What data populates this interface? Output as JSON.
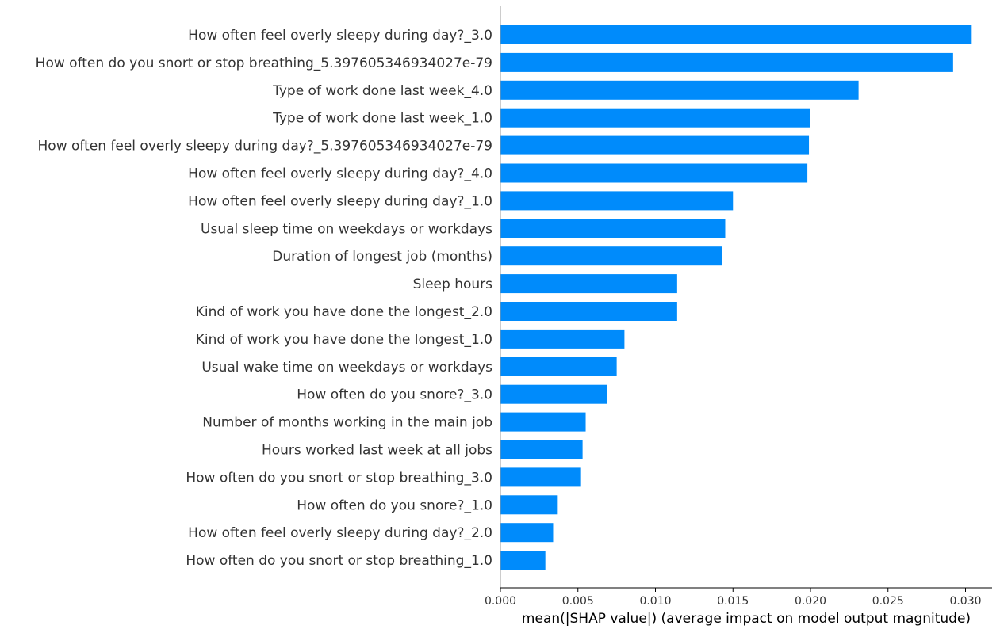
{
  "chart_data": {
    "type": "bar",
    "orientation": "horizontal",
    "categories": [
      "How often feel overly sleepy during day?_3.0",
      "How often do you snort or stop breathing_5.397605346934027e-79",
      "Type of work done last week_4.0",
      "Type of work done last week_1.0",
      "How often feel overly sleepy during day?_5.397605346934027e-79",
      "How often feel overly sleepy during day?_4.0",
      "How often feel overly sleepy during day?_1.0",
      "Usual sleep time on weekdays or workdays",
      "Duration of longest job (months)",
      "Sleep hours",
      "Kind of work you have done the longest_2.0",
      "Kind of work you have done the longest_1.0",
      "Usual wake time on weekdays or workdays",
      "How often do you snore?_3.0",
      "Number of months working in the main job",
      "Hours worked last week at all jobs",
      "How often do you snort or stop breathing_3.0",
      "How often do you snore?_1.0",
      "How often feel overly sleepy during day?_2.0",
      "How often do you snort or stop breathing_1.0"
    ],
    "values": [
      0.0304,
      0.0292,
      0.0231,
      0.02,
      0.0199,
      0.0198,
      0.015,
      0.0145,
      0.0143,
      0.0114,
      0.0114,
      0.008,
      0.0075,
      0.0069,
      0.0055,
      0.0053,
      0.0052,
      0.0037,
      0.0034,
      0.0029
    ],
    "xlabel": "mean(|SHAP value|) (average impact on model output magnitude)",
    "ylabel": "",
    "xlim": [
      0,
      0.0319
    ],
    "xticks": [
      "0.000",
      "0.005",
      "0.010",
      "0.015",
      "0.020",
      "0.025",
      "0.030"
    ],
    "xtick_values": [
      0,
      0.005,
      0.01,
      0.015,
      0.02,
      0.025,
      0.03
    ],
    "bar_color": "#008bfb",
    "grid": false
  }
}
